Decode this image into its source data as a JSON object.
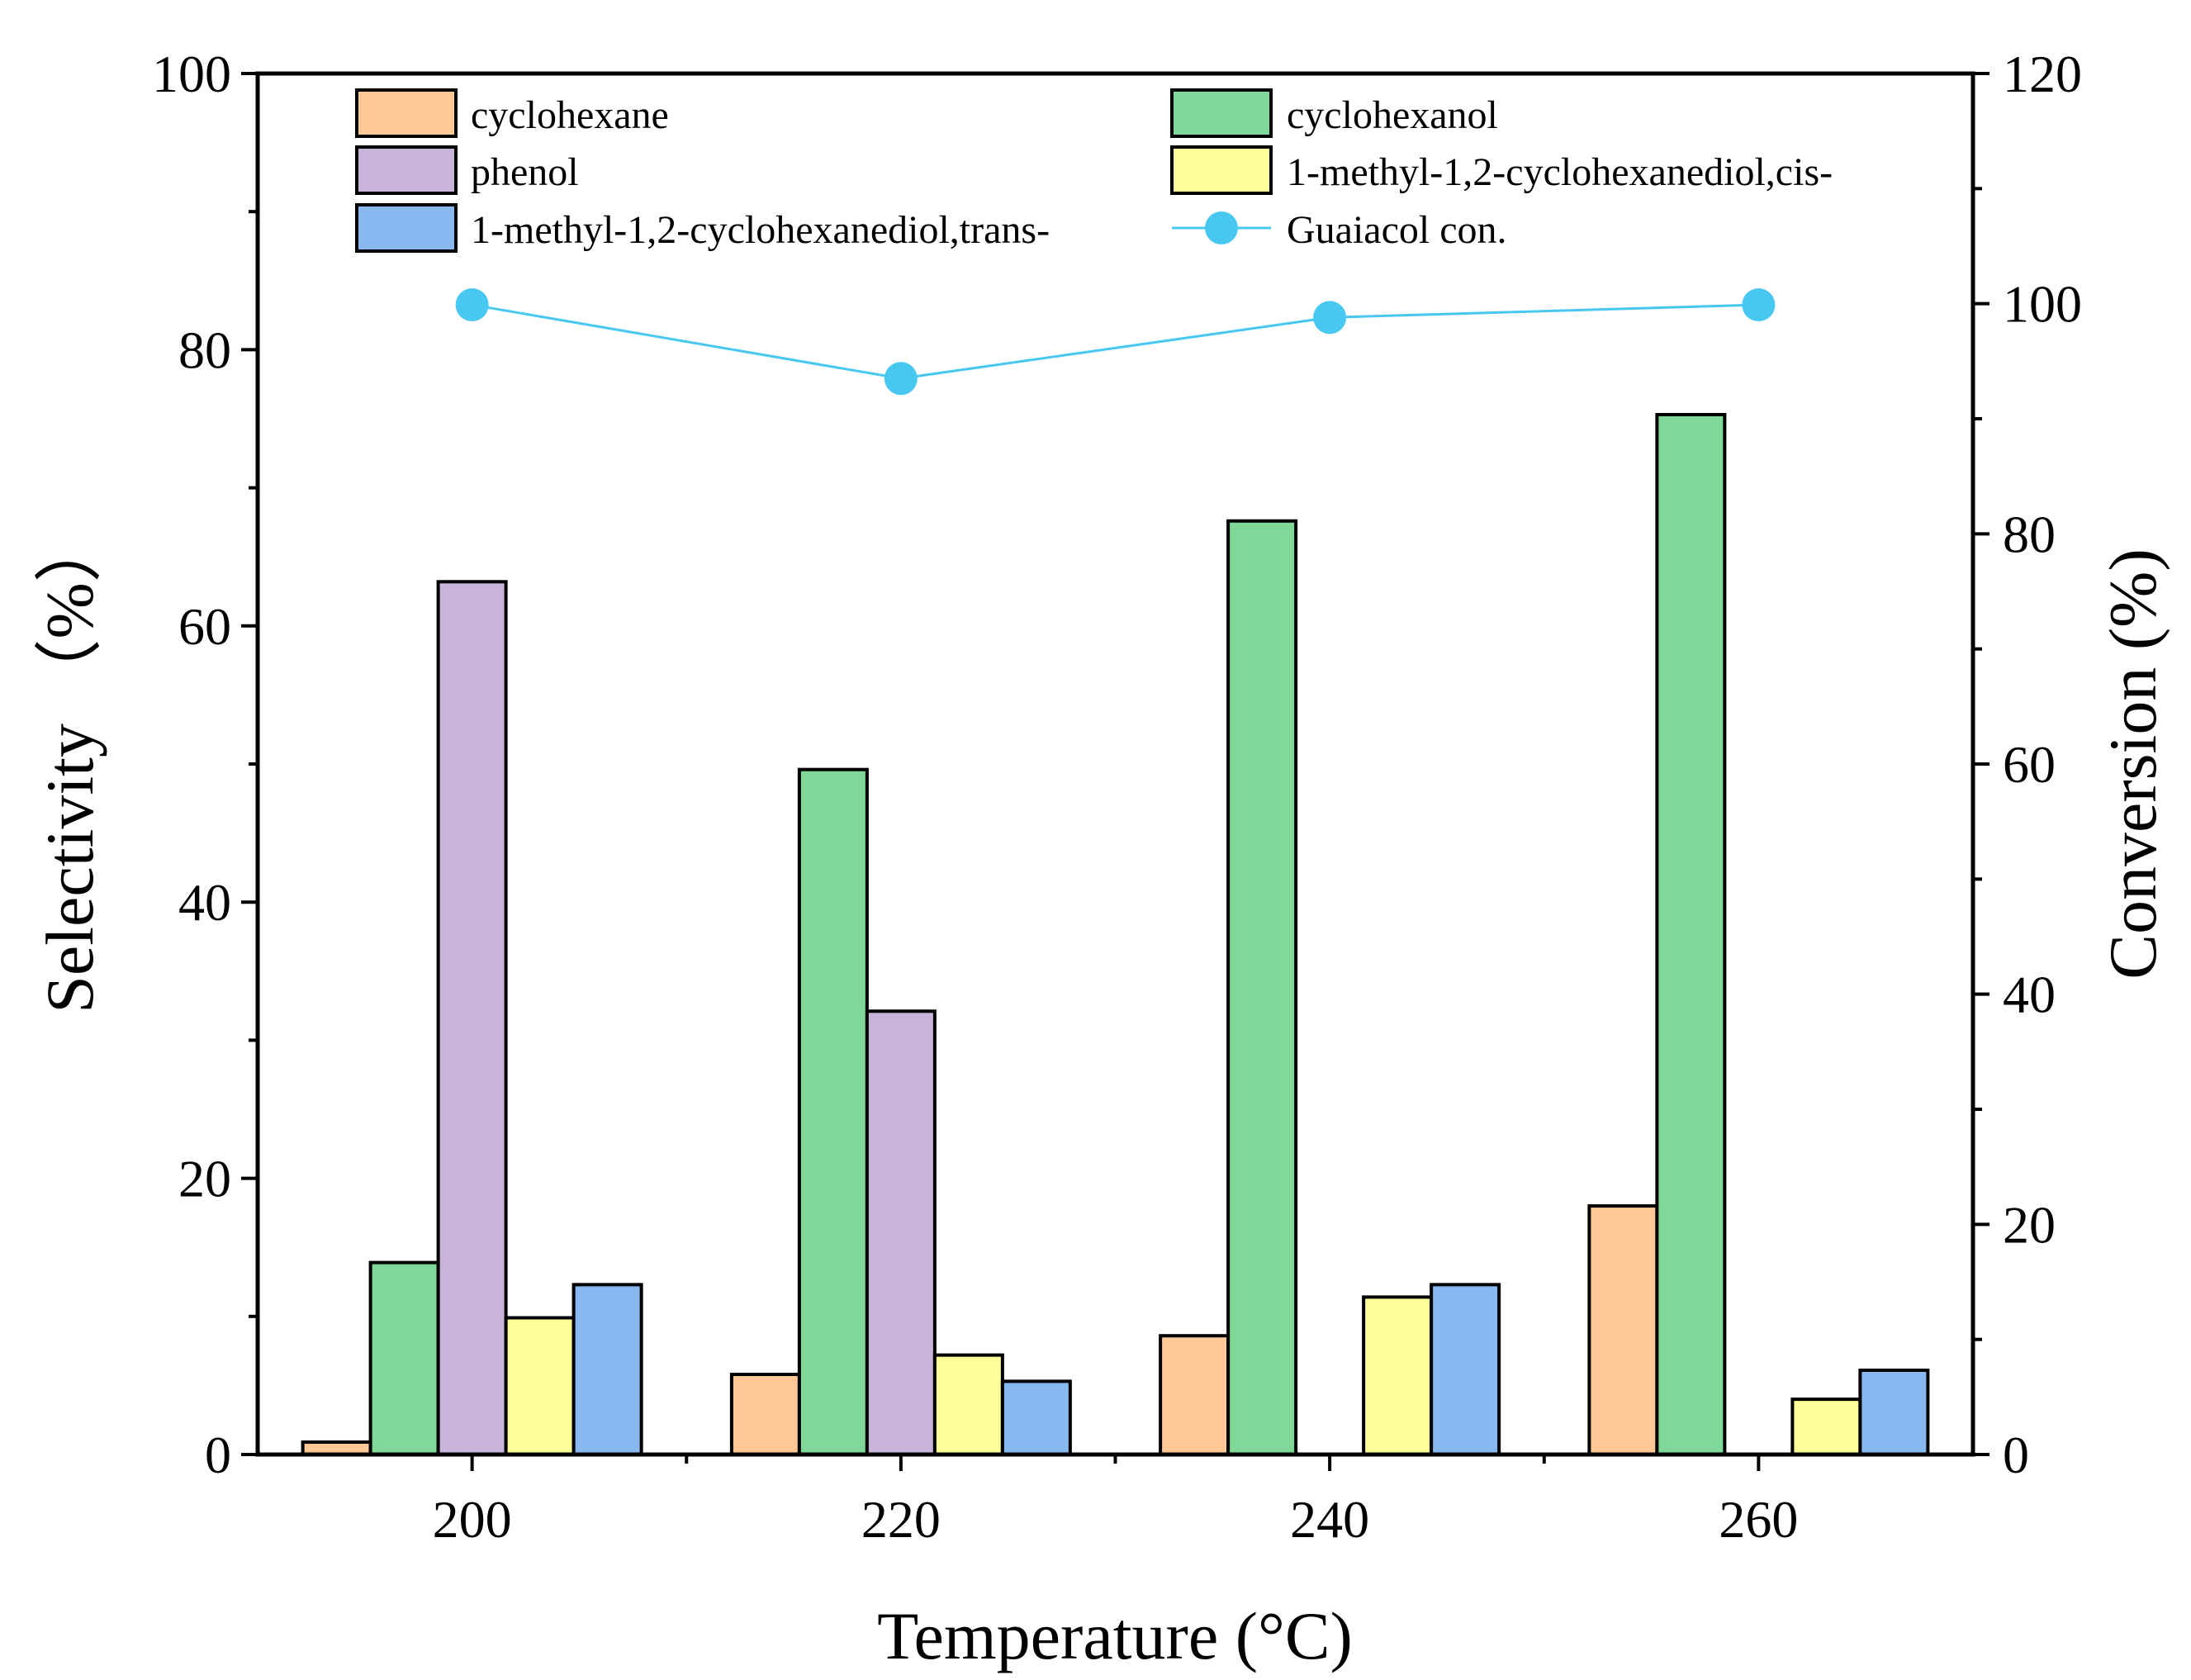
{
  "chart_data": {
    "type": "bar",
    "title": "",
    "xlabel": "Temperature (°C)",
    "ylabel": "Selectivity （%）",
    "y2label": "Conversion (%)",
    "categories": [
      "200",
      "220",
      "240",
      "260"
    ],
    "x": [
      200,
      220,
      240,
      260
    ],
    "xlim": [
      190,
      270
    ],
    "ylim": [
      0,
      100
    ],
    "y2lim": [
      0,
      120
    ],
    "yticks": [
      "0",
      "20",
      "40",
      "60",
      "80",
      "100"
    ],
    "y2ticks": [
      "0",
      "20",
      "40",
      "60",
      "80",
      "100",
      "120"
    ],
    "series": [
      {
        "name": "cyclohexane",
        "color": "#FFC896",
        "values": [
          0.9,
          5.8,
          8.6,
          18.0
        ]
      },
      {
        "name": "cyclohexanol",
        "color": "#7FD898",
        "values": [
          13.9,
          49.6,
          67.6,
          75.3
        ]
      },
      {
        "name": "phenol",
        "color": "#C8B4D8",
        "values": [
          63.2,
          32.1,
          0,
          0
        ]
      },
      {
        "name": "1-methyl-1,2-cyclohexanediol,cis-",
        "color": "#FFFF9A",
        "values": [
          9.9,
          7.2,
          11.4,
          4.0
        ]
      },
      {
        "name": "1-methyl-1,2-cyclohexanediol,trans-",
        "color": "#87B9F0",
        "values": [
          12.3,
          5.3,
          12.3,
          6.1
        ]
      }
    ],
    "line_series": {
      "name": "Guaiacol con.",
      "axis": "right",
      "color": "#48C8F0",
      "values": [
        99.9,
        93.5,
        98.8,
        99.9
      ]
    },
    "legend_position": "top"
  }
}
